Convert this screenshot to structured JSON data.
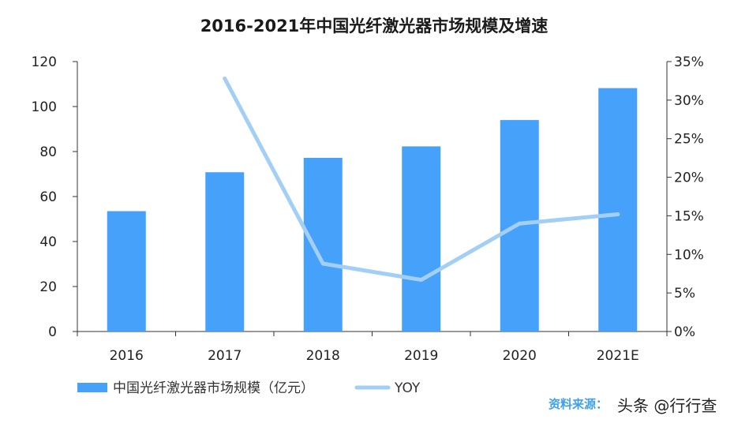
{
  "chart_data": {
    "type": "bar",
    "title": "2016-2021年中国光纤激光器市场规模及增速",
    "categories": [
      "2016",
      "2017",
      "2018",
      "2019",
      "2020",
      "2021E"
    ],
    "series": [
      {
        "name": "中国光纤激光器市场规模（亿元）",
        "type": "bar",
        "axis": "left",
        "color": "#45a1fa",
        "values": [
          53.5,
          70.8,
          77.2,
          82.3,
          94.0,
          108.2
        ]
      },
      {
        "name": "YOY",
        "type": "line",
        "axis": "right",
        "color": "#a3cff5",
        "values": [
          null,
          0.328,
          0.088,
          0.067,
          0.14,
          0.152
        ]
      }
    ],
    "y_left": {
      "range": [
        0,
        120
      ],
      "ticks": [
        "0",
        "20",
        "40",
        "60",
        "80",
        "100",
        "120"
      ]
    },
    "y_right": {
      "range": [
        0,
        0.35
      ],
      "ticks": [
        "0%",
        "5%",
        "10%",
        "15%",
        "20%",
        "25%",
        "30%",
        "35%"
      ]
    },
    "grid": false,
    "legend_placement": "bottom-left"
  },
  "source": {
    "label": "资料来源：",
    "watermark": "头条 @行行查"
  }
}
